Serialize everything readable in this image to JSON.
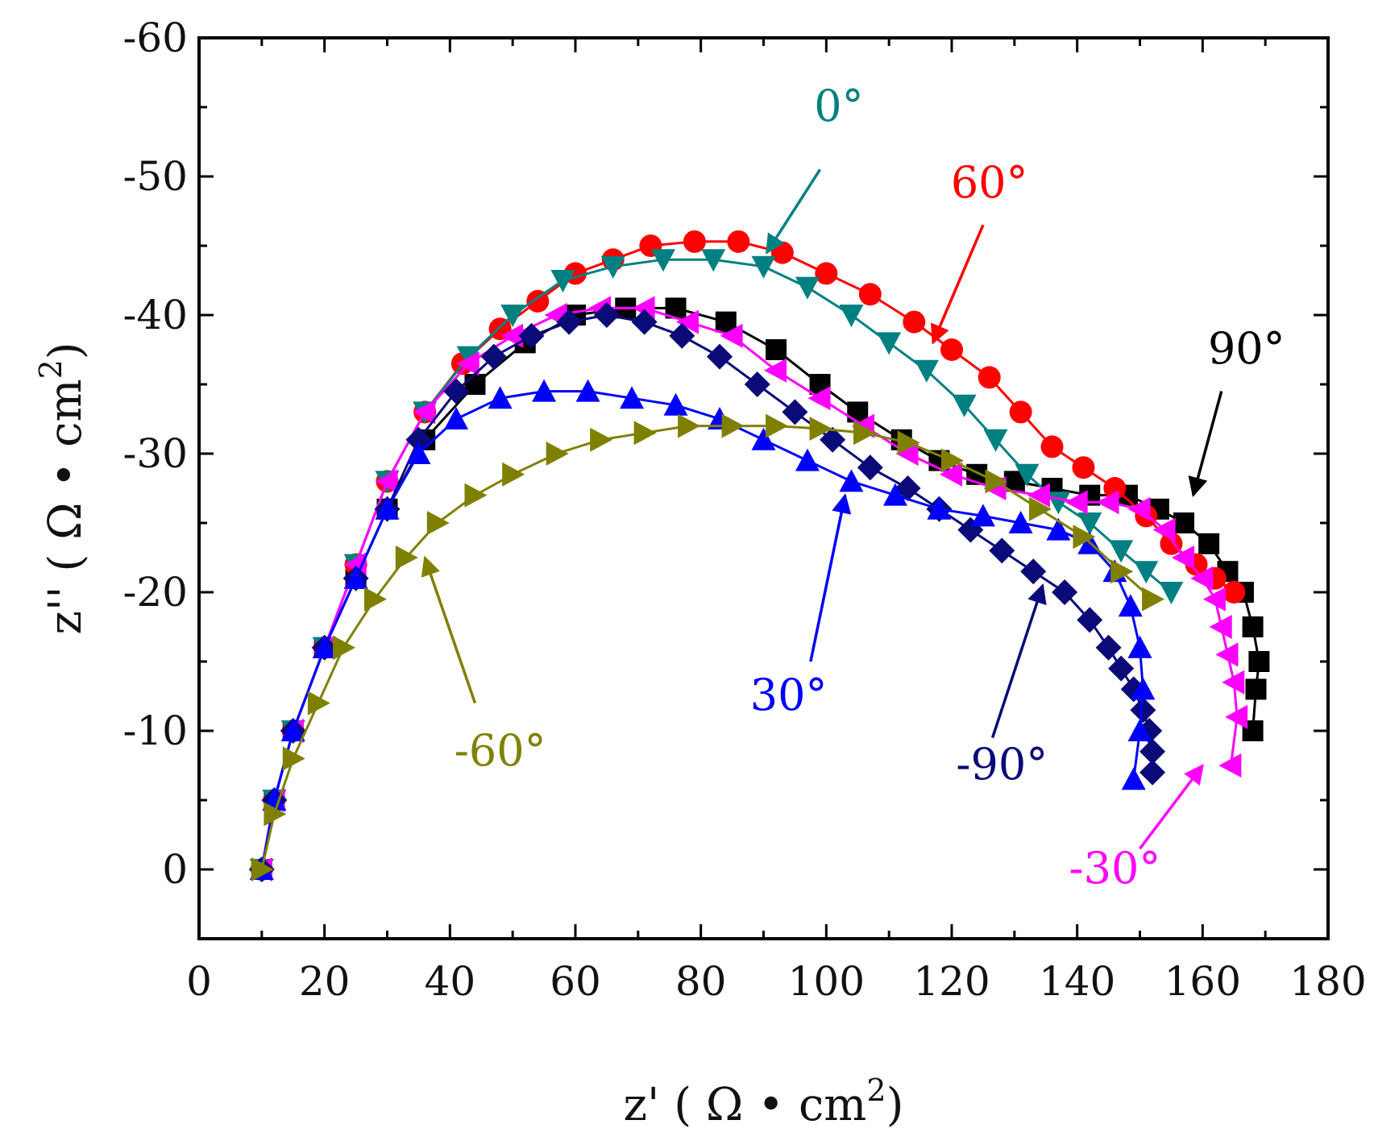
{
  "chart_data": {
    "type": "scatter",
    "title": "",
    "xlabel": "z' ( Ω • cm",
    "ylabel": "z'' ( Ω • cm",
    "unit_superscript": "2",
    "unit_close": ")",
    "xlim": [
      0,
      180
    ],
    "ylim": [
      5,
      -60
    ],
    "xticks": [
      0,
      20,
      40,
      60,
      80,
      100,
      120,
      140,
      160,
      180
    ],
    "xtick_labels": [
      "0",
      "20",
      "40",
      "60",
      "80",
      "100",
      "120",
      "140",
      "160",
      "180"
    ],
    "yticks": [
      0,
      -10,
      -20,
      -30,
      -40,
      -50,
      -60
    ],
    "ytick_labels": [
      "0",
      "-10",
      "-20",
      "-30",
      "-40",
      "-50",
      "-60"
    ],
    "series": [
      {
        "name": "90°",
        "color": "#000000",
        "marker": "square",
        "x": [
          10,
          12,
          15,
          20,
          25,
          30,
          36,
          44,
          52,
          60,
          68,
          76,
          84,
          92,
          99,
          105,
          112,
          118,
          124,
          130,
          136,
          142,
          148,
          153,
          157,
          161,
          164,
          166.5,
          168,
          169,
          168.5,
          168
        ],
        "y": [
          0,
          -5,
          -10,
          -16,
          -21,
          -26,
          -31,
          -35,
          -38,
          -40,
          -40.5,
          -40.5,
          -39.5,
          -37.5,
          -35,
          -33,
          -31,
          -29.5,
          -28.5,
          -28,
          -27.5,
          -27,
          -27,
          -26,
          -25,
          -23.5,
          -21.5,
          -20,
          -17.5,
          -15,
          -13,
          -10
        ]
      },
      {
        "name": "60°",
        "color": "#ff0000",
        "marker": "circle",
        "x": [
          10,
          12,
          15,
          20,
          25,
          30,
          36,
          42,
          48,
          54,
          60,
          66,
          72,
          79,
          86,
          93,
          100,
          107,
          114,
          120,
          126,
          131,
          136,
          141,
          146,
          151,
          155,
          159,
          162,
          165
        ],
        "y": [
          0,
          -5,
          -10,
          -16,
          -22,
          -28,
          -33,
          -36.5,
          -39,
          -41,
          -43,
          -44,
          -45,
          -45.3,
          -45.3,
          -44.5,
          -43,
          -41.5,
          -39.5,
          -37.5,
          -35.5,
          -33,
          -30.5,
          -29,
          -27.5,
          -25.5,
          -23.5,
          -22,
          -21,
          -20
        ]
      },
      {
        "name": "0°",
        "color": "#008080",
        "marker": "triangle-down",
        "x": [
          10,
          12,
          15,
          20,
          25,
          30,
          36,
          43,
          50,
          58,
          66,
          74,
          82,
          90,
          97,
          104,
          110,
          116,
          122,
          127,
          132,
          137,
          142,
          147,
          151,
          155
        ],
        "y": [
          0,
          -5,
          -10,
          -16,
          -22,
          -28,
          -33,
          -37,
          -40,
          -42.5,
          -43.5,
          -44,
          -44,
          -43.5,
          -42,
          -40,
          -38,
          -36,
          -33.5,
          -31,
          -28.5,
          -26.5,
          -25,
          -23,
          -21.5,
          -20
        ]
      },
      {
        "name": "-30°",
        "color": "#ff00ff",
        "marker": "triangle-left",
        "x": [
          10,
          12,
          15,
          20,
          25,
          30,
          36,
          43,
          50,
          57,
          64,
          71,
          78,
          85,
          92,
          99,
          106,
          113,
          120,
          127,
          134,
          140,
          145,
          150,
          154,
          157,
          160,
          162,
          163,
          164,
          165,
          165.5,
          164.5
        ],
        "y": [
          0,
          -5,
          -10,
          -16,
          -22,
          -28,
          -33,
          -36.5,
          -38.5,
          -40,
          -40.5,
          -40.5,
          -39.5,
          -38.5,
          -36,
          -34,
          -32,
          -30,
          -28.5,
          -27.5,
          -27,
          -26.5,
          -26.5,
          -26,
          -24.5,
          -22.5,
          -21,
          -19.5,
          -17.5,
          -15.5,
          -13.5,
          -11,
          -7.5
        ]
      },
      {
        "name": "-90°",
        "color": "#0a0a78",
        "marker": "diamond",
        "x": [
          10,
          12,
          15,
          20,
          25,
          30,
          35,
          41,
          47,
          53,
          59,
          65,
          71,
          77,
          83,
          89,
          95,
          101,
          107,
          113,
          118,
          123,
          128,
          133,
          138,
          142,
          145,
          147,
          149,
          150.5,
          151.5,
          152,
          152
        ],
        "y": [
          0,
          -5,
          -10,
          -16,
          -21,
          -26,
          -31,
          -34.5,
          -37,
          -38.5,
          -39.5,
          -40,
          -39.5,
          -38.5,
          -37,
          -35,
          -33,
          -31,
          -29,
          -27.5,
          -26,
          -24.5,
          -23,
          -21.5,
          -20,
          -18,
          -16,
          -14.5,
          -13,
          -11.5,
          -10,
          -8.5,
          -7
        ]
      },
      {
        "name": "30°",
        "color": "#0000ff",
        "marker": "triangle-up",
        "x": [
          10,
          12,
          15,
          20,
          25,
          30,
          35,
          41,
          48,
          55,
          62,
          69,
          76,
          83,
          90,
          97,
          104,
          111,
          118,
          125,
          131,
          137,
          142,
          146,
          148.5,
          150,
          150.5,
          150,
          149
        ],
        "y": [
          0,
          -5,
          -10,
          -16,
          -21,
          -26,
          -30,
          -32.5,
          -34,
          -34.5,
          -34.5,
          -34,
          -33.5,
          -32.5,
          -31,
          -29.5,
          -28,
          -27,
          -26,
          -25.5,
          -25,
          -24.5,
          -23.5,
          -21.5,
          -19,
          -16,
          -13,
          -10,
          -6.5
        ]
      },
      {
        "name": "-60°",
        "color": "#808000",
        "marker": "triangle-right",
        "x": [
          10,
          12,
          15,
          19,
          23,
          28,
          33,
          38,
          44,
          50,
          57,
          64,
          71,
          78,
          85,
          92,
          99,
          106,
          113,
          120,
          127,
          134,
          141,
          147,
          152
        ],
        "y": [
          0,
          -4,
          -8,
          -12,
          -16,
          -19.5,
          -22.5,
          -25,
          -27,
          -28.5,
          -30,
          -31,
          -31.5,
          -32,
          -32,
          -32,
          -31.8,
          -31.5,
          -30.8,
          -29.5,
          -28,
          -26,
          -24,
          -21.5,
          -19.5
        ]
      }
    ],
    "annotations": [
      {
        "text": "0°",
        "color": "#008080",
        "text_xy": [
          102,
          -54
        ],
        "arrow_from": [
          99,
          -50.5
        ],
        "arrow_to": [
          90.5,
          -44.5
        ]
      },
      {
        "text": "60°",
        "color": "#ff0000",
        "text_xy": [
          126,
          -48.5
        ],
        "arrow_from": [
          125,
          -46.5
        ],
        "arrow_to": [
          117,
          -38
        ]
      },
      {
        "text": "90°",
        "color": "#000000",
        "text_xy": [
          167,
          -36.5
        ],
        "arrow_from": [
          163,
          -34.5
        ],
        "arrow_to": [
          158.5,
          -27
        ]
      },
      {
        "text": "30°",
        "color": "#0000ff",
        "text_xy": [
          94,
          -11.5
        ],
        "arrow_from": [
          97.5,
          -15
        ],
        "arrow_to": [
          103,
          -27
        ]
      },
      {
        "text": "-90°",
        "color": "#0a0a78",
        "text_xy": [
          128,
          -6.5
        ],
        "arrow_from": [
          126.5,
          -9.5
        ],
        "arrow_to": [
          134.5,
          -20.5
        ]
      },
      {
        "text": "-60°",
        "color": "#808000",
        "text_xy": [
          48,
          -7.5
        ],
        "arrow_from": [
          44,
          -12
        ],
        "arrow_to": [
          36,
          -22.5
        ]
      },
      {
        "text": "-30°",
        "color": "#ff00ff",
        "text_xy": [
          146,
          1
        ],
        "arrow_from": [
          150,
          -1.5
        ],
        "arrow_to": [
          160,
          -7.5
        ]
      }
    ]
  }
}
